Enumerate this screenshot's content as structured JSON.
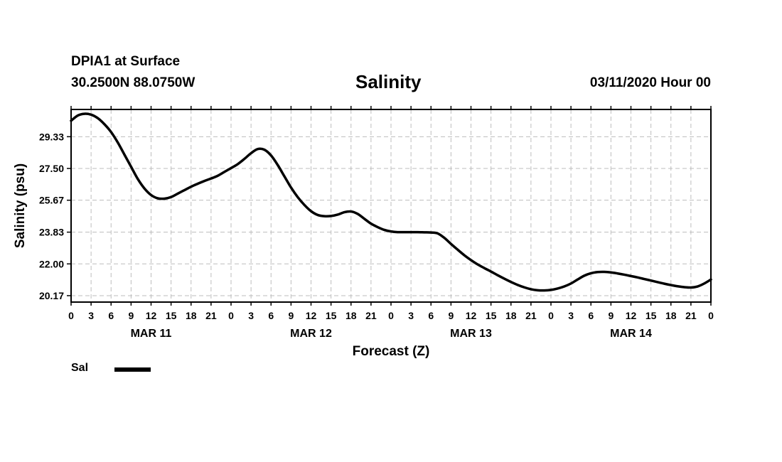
{
  "header": {
    "station": "DPIA1 at Surface",
    "coordinates": "30.2500N 88.0750W",
    "title": "Salinity",
    "datetime": "03/11/2020 Hour 00"
  },
  "legend": {
    "label": "Sal",
    "color": "#000000"
  },
  "chart_data": {
    "type": "line",
    "title": "Salinity",
    "xlabel": "Forecast (Z)",
    "ylabel": "Salinity (psu)",
    "xlim": [
      0,
      96
    ],
    "ylim": [
      19.8,
      30.9
    ],
    "yticks": [
      "29.33",
      "27.50",
      "25.67",
      "23.83",
      "22.00",
      "20.17"
    ],
    "ytick_values": [
      29.33,
      27.5,
      25.67,
      23.83,
      22.0,
      20.17
    ],
    "xtick_hours": [
      0,
      3,
      6,
      9,
      12,
      15,
      18,
      21,
      24,
      27,
      30,
      33,
      36,
      39,
      42,
      45,
      48,
      51,
      54,
      57,
      60,
      63,
      66,
      69,
      72,
      75,
      78,
      81,
      84,
      87,
      90,
      93,
      96
    ],
    "xtick_labels": [
      "0",
      "3",
      "6",
      "9",
      "12",
      "15",
      "18",
      "21",
      "0",
      "3",
      "6",
      "9",
      "12",
      "15",
      "18",
      "21",
      "0",
      "3",
      "6",
      "9",
      "12",
      "15",
      "18",
      "21",
      "0",
      "3",
      "6",
      "9",
      "12",
      "15",
      "18",
      "21",
      "0"
    ],
    "date_labels": [
      {
        "hour": 12,
        "label": "MAR 11"
      },
      {
        "hour": 36,
        "label": "MAR 12"
      },
      {
        "hour": 60,
        "label": "MAR 13"
      },
      {
        "hour": 84,
        "label": "MAR 14"
      }
    ],
    "grid": true,
    "series": [
      {
        "name": "Sal",
        "color": "#000000",
        "x": [
          0,
          1,
          2,
          3,
          4,
          5,
          6,
          7,
          8,
          9,
          10,
          11,
          12,
          13,
          14,
          15,
          16,
          17,
          18,
          19,
          20,
          21,
          22,
          23,
          24,
          25,
          26,
          27,
          28,
          29,
          30,
          31,
          32,
          33,
          34,
          35,
          36,
          37,
          38,
          39,
          40,
          41,
          42,
          43,
          44,
          45,
          46,
          47,
          48,
          49,
          50,
          51,
          52,
          53,
          54,
          55,
          56,
          57,
          58,
          59,
          60,
          61,
          62,
          63,
          64,
          65,
          66,
          67,
          68,
          69,
          70,
          71,
          72,
          73,
          74,
          75,
          76,
          77,
          78,
          79,
          80,
          81,
          82,
          83,
          84,
          85,
          86,
          87,
          88,
          89,
          90,
          91,
          92,
          93,
          94,
          95,
          96
        ],
        "values": [
          30.25,
          30.55,
          30.65,
          30.6,
          30.4,
          30.05,
          29.6,
          29.0,
          28.3,
          27.6,
          26.9,
          26.35,
          25.97,
          25.78,
          25.76,
          25.85,
          26.05,
          26.25,
          26.45,
          26.62,
          26.78,
          26.92,
          27.08,
          27.3,
          27.52,
          27.75,
          28.05,
          28.38,
          28.62,
          28.58,
          28.25,
          27.7,
          27.05,
          26.4,
          25.85,
          25.4,
          25.04,
          24.82,
          24.75,
          24.76,
          24.84,
          24.98,
          25.02,
          24.88,
          24.6,
          24.32,
          24.12,
          23.96,
          23.87,
          23.83,
          23.83,
          23.83,
          23.83,
          23.82,
          23.81,
          23.76,
          23.5,
          23.15,
          22.82,
          22.5,
          22.22,
          21.97,
          21.76,
          21.56,
          21.35,
          21.15,
          20.96,
          20.79,
          20.65,
          20.54,
          20.48,
          20.47,
          20.5,
          20.58,
          20.7,
          20.87,
          21.1,
          21.32,
          21.46,
          21.53,
          21.54,
          21.51,
          21.45,
          21.38,
          21.3,
          21.22,
          21.13,
          21.04,
          20.95,
          20.86,
          20.78,
          20.71,
          20.66,
          20.64,
          20.7,
          20.87,
          21.1
        ]
      }
    ]
  }
}
